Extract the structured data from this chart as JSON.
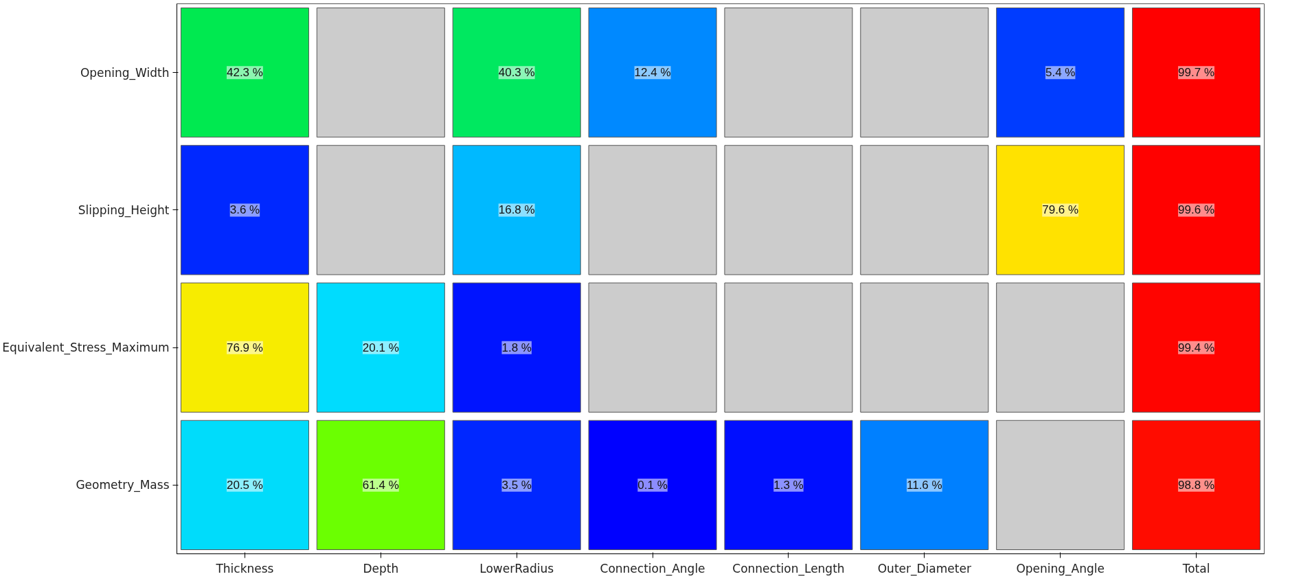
{
  "chart_data": {
    "type": "heatmap",
    "categories": [
      "Thickness",
      "Depth",
      "LowerRadius",
      "Connection_Angle",
      "Connection_Length",
      "Outer_Diameter",
      "Opening_Angle",
      "Total"
    ],
    "y_categories": [
      "Opening_Width",
      "Slipping_Height",
      "Equivalent_Stress_Maximum",
      "Geometry_Mass"
    ],
    "cells": [
      [
        42.3,
        null,
        40.3,
        12.4,
        null,
        null,
        5.4,
        99.7
      ],
      [
        3.6,
        null,
        16.8,
        null,
        null,
        null,
        79.6,
        99.6
      ],
      [
        76.9,
        20.1,
        1.8,
        null,
        null,
        null,
        null,
        99.4
      ],
      [
        20.5,
        61.4,
        3.5,
        0.1,
        1.3,
        11.6,
        null,
        98.8
      ]
    ],
    "cell_labels": [
      [
        "42.3 %",
        null,
        "40.3 %",
        "12.4 %",
        null,
        null,
        "5.4 %",
        "99.7 %"
      ],
      [
        "3.6 %",
        null,
        "16.8 %",
        null,
        null,
        null,
        "79.6 %",
        "99.6 %"
      ],
      [
        "76.9 %",
        "20.1 %",
        "1.8 %",
        null,
        null,
        null,
        null,
        "99.4 %"
      ],
      [
        "20.5 %",
        "61.4 %",
        "3.5 %",
        "0.1 %",
        "1.3 %",
        "11.6 %",
        null,
        "98.8 %"
      ]
    ]
  }
}
